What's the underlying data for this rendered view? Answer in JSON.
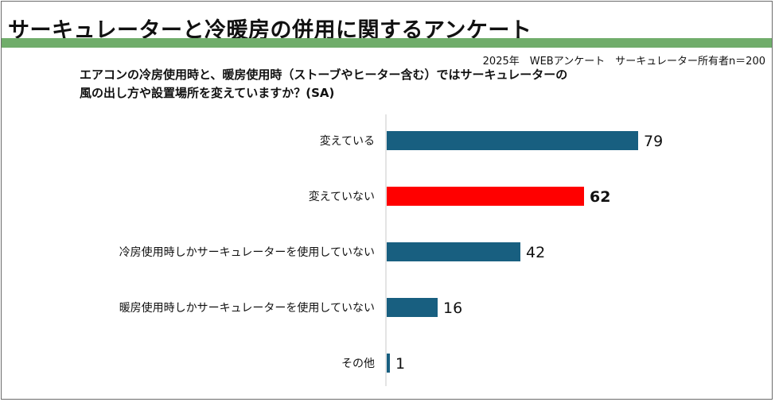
{
  "title": "サーキュレーターと冷暖房の併用に関するアンケート",
  "source": "2025年　WEBアンケート　サーキュレーター所有者n＝200",
  "question_lines": [
    "エアコンの冷房使用時と、暖房使用時（ストーブやヒーター含む）ではサーキュレーターの",
    "風の出し方や設置場所を変えていますか？(SA)"
  ],
  "colors": {
    "bar": "#185f80",
    "highlight": "#ff0000",
    "accent": "#70ad6b"
  },
  "chart_data": {
    "type": "bar",
    "orientation": "horizontal",
    "title": "エアコンの冷房使用時と、暖房使用時（ストーブやヒーター含む）ではサーキュレーターの風の出し方や設置場所を変えていますか？(SA)",
    "categories": [
      "変えている",
      "変えていない",
      "冷房使用時しかサーキュレーターを使用していない",
      "暖房使用時しかサーキュレーターを使用していない",
      "その他"
    ],
    "values": [
      79,
      62,
      42,
      16,
      1
    ],
    "data_labels": [
      "79",
      "62",
      "42",
      "16",
      "1"
    ],
    "highlighted_index": 1,
    "xlim": [
      0,
      100
    ],
    "grid": false,
    "legend": "none"
  }
}
